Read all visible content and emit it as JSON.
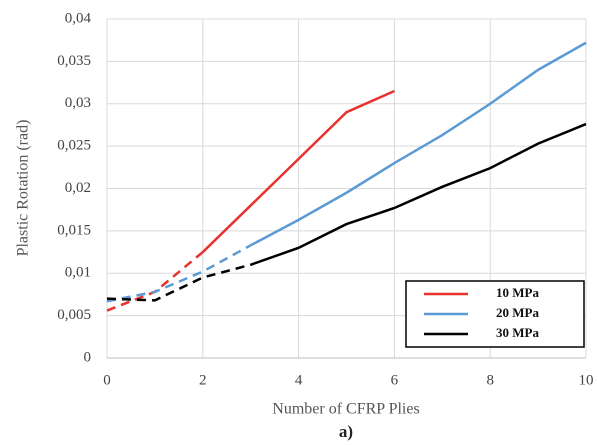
{
  "chart_data": {
    "type": "line",
    "x_label": "Number of CFRP Plies",
    "y_label": "Plastic Rotation (rad)",
    "caption": "a)",
    "xlim": [
      0,
      10
    ],
    "xticks": [
      0,
      2,
      4,
      6,
      8,
      10
    ],
    "ylim": [
      0,
      0.04
    ],
    "yticks": [
      0,
      {
        "value": 0.005,
        "label": "0,005"
      },
      {
        "value": 0.01,
        "label": "0,01"
      },
      {
        "value": 0.015,
        "label": "0,015"
      },
      {
        "value": 0.02,
        "label": "0,02"
      },
      {
        "value": 0.025,
        "label": "0,025"
      },
      {
        "value": 0.03,
        "label": "0,03"
      },
      {
        "value": 0.035,
        "label": "0,035"
      },
      {
        "value": 0.04,
        "label": "0,04"
      }
    ],
    "grid": true,
    "legend": "lower right",
    "series": [
      {
        "name": "10 MPa",
        "color": "#e8322e",
        "dashed_until": 2,
        "x": [
          0,
          1,
          2,
          3,
          4,
          5,
          6
        ],
        "values": [
          0.0056,
          0.0078,
          0.0125,
          0.018,
          0.0235,
          0.029,
          0.0315
        ]
      },
      {
        "name": "20 MPa",
        "color": "#5b9bd5",
        "dashed_until": 3,
        "x": [
          0,
          1,
          2,
          3,
          4,
          5,
          6,
          7,
          8,
          9,
          10
        ],
        "values": [
          0.0067,
          0.0078,
          0.0102,
          0.0133,
          0.0163,
          0.0195,
          0.023,
          0.0263,
          0.03,
          0.034,
          0.0372
        ]
      },
      {
        "name": "30 MPa",
        "color": "#000000",
        "dashed_until": 3,
        "x": [
          0,
          1,
          2,
          3,
          4,
          5,
          6,
          7,
          8,
          9,
          10
        ],
        "values": [
          0.007,
          0.0068,
          0.0095,
          0.011,
          0.013,
          0.0158,
          0.0177,
          0.0202,
          0.0224,
          0.0253,
          0.0276
        ]
      }
    ]
  }
}
